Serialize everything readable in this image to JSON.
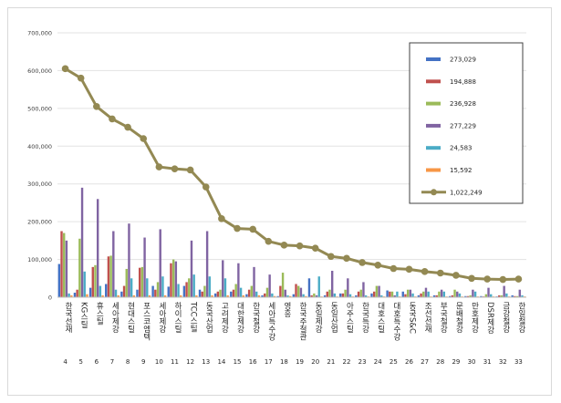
{
  "chart_data": {
    "type": "bar",
    "combo": "clustered bars (6 series) with line overlay",
    "categories": [
      "4",
      "5",
      "6",
      "7",
      "8",
      "9",
      "10",
      "11",
      "12",
      "13",
      "14",
      "15",
      "16",
      "17",
      "18",
      "19",
      "20",
      "21",
      "22",
      "23",
      "24",
      "25",
      "26",
      "27",
      "28",
      "29",
      "30",
      "31",
      "32",
      "33"
    ],
    "category_names": [
      "한국선재",
      "KG스틸",
      "휴스틸",
      "세아제강",
      "현대스틸",
      "포스코엠텍",
      "세아제강",
      "하이스틸",
      "TCC스틸",
      "동국산업",
      "고려제강",
      "대한제강",
      "한국철강",
      "세아특수강",
      "영흥",
      "한국주철관",
      "동일제강",
      "동일산업",
      "아주스틸",
      "한국특강",
      "대호스틸",
      "대호특수강",
      "동국S&C",
      "조선선재",
      "부국철강",
      "문배철강",
      "만호제강",
      "DSR제강",
      "금강철강",
      "한일철강"
    ],
    "ylim": [
      0,
      700000
    ],
    "yticks": [
      "0",
      "100,000",
      "200,000",
      "300,000",
      "400,000",
      "500,000",
      "600,000",
      "700,000"
    ],
    "grid": true,
    "legend_position": "right",
    "series": [
      {
        "name": "273,029",
        "color": "#4472c4",
        "values": [
          88000,
          12000,
          25000,
          35000,
          15000,
          20000,
          30000,
          28000,
          30000,
          20000,
          10000,
          15000,
          8000,
          5000,
          3000,
          8000,
          50000,
          5000,
          10000,
          5000,
          10000,
          18000,
          15000,
          5000,
          5000,
          3000,
          3000,
          3000,
          2000,
          5000
        ]
      },
      {
        "name": "194,888",
        "color": "#c0504d",
        "values": [
          175000,
          20000,
          80000,
          108000,
          30000,
          78000,
          20000,
          90000,
          40000,
          15000,
          15000,
          20000,
          20000,
          10000,
          30000,
          35000,
          5000,
          15000,
          10000,
          15000,
          15000,
          15000,
          8000,
          10000,
          5000,
          5000,
          3000,
          2000,
          5000,
          3000
        ]
      },
      {
        "name": "236,928",
        "color": "#9bbb59",
        "values": [
          170000,
          155000,
          85000,
          110000,
          75000,
          80000,
          40000,
          100000,
          50000,
          30000,
          20000,
          35000,
          30000,
          25000,
          65000,
          30000,
          10000,
          20000,
          20000,
          20000,
          30000,
          15000,
          20000,
          15000,
          15000,
          20000,
          5000,
          8000,
          5000,
          3000
        ]
      },
      {
        "name": "277,229",
        "color": "#8064a2",
        "values": [
          150000,
          290000,
          260000,
          175000,
          195000,
          158000,
          180000,
          95000,
          150000,
          175000,
          98000,
          90000,
          80000,
          60000,
          20000,
          25000,
          5000,
          70000,
          50000,
          40000,
          30000,
          5000,
          20000,
          25000,
          20000,
          15000,
          20000,
          25000,
          30000,
          20000
        ]
      },
      {
        "name": "24,583",
        "color": "#4bacc6",
        "values": [
          10000,
          68000,
          30000,
          20000,
          50000,
          50000,
          55000,
          35000,
          60000,
          55000,
          50000,
          25000,
          15000,
          10000,
          5000,
          8000,
          55000,
          10000,
          8000,
          5000,
          5000,
          15000,
          10000,
          15000,
          15000,
          10000,
          15000,
          8000,
          10000,
          5000
        ]
      },
      {
        "name": "15,592",
        "color": "#f79646",
        "values": [
          5000,
          8000,
          5000,
          5000,
          5000,
          5000,
          5000,
          5000,
          5000,
          5000,
          5000,
          5000,
          5000,
          3000,
          3000,
          3000,
          2000,
          2000,
          2000,
          2000,
          2000,
          2000,
          2000,
          2000,
          2000,
          2000,
          2000,
          2000,
          2000,
          2000
        ]
      }
    ],
    "line_series": {
      "name": "1,022,249",
      "color": "#938953",
      "values": [
        605000,
        580000,
        505000,
        472000,
        450000,
        420000,
        345000,
        340000,
        337000,
        292000,
        208000,
        182000,
        180000,
        148000,
        138000,
        136000,
        130000,
        108000,
        103000,
        92000,
        85000,
        76000,
        74000,
        68000,
        64000,
        58000,
        50000,
        48000,
        47000,
        48000
      ]
    }
  }
}
